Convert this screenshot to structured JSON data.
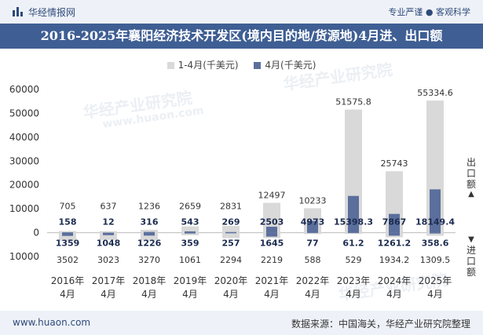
{
  "header": {
    "brand": "华经情报网",
    "slogan": "专业严谨 ● 客观科学"
  },
  "title": "2016-2025年襄阳经济技术开发区(境内目的地/货源地)4月进、出口额",
  "legend": [
    "1-4月(千美元)",
    "4月(千美元)"
  ],
  "side_labels": {
    "export": "出口额",
    "import": "进口额"
  },
  "watermarks": [
    "华经产业研究院",
    "www.huaon.com"
  ],
  "footer": {
    "url": "www.huaon.com",
    "source": "数据来源：中国海关，华经产业研究院整理"
  },
  "colors": {
    "cumulative": "#d9d9d9",
    "monthly": "#5b6f9d",
    "header_bg": "#3f5f94"
  },
  "chart_data": {
    "type": "bar",
    "categories": [
      "2016年\n4月",
      "2017年\n4月",
      "2018年\n4月",
      "2019年\n4月",
      "2020年\n4月",
      "2021年\n4月",
      "2022年\n4月",
      "2023年\n4月",
      "2024年\n4月",
      "2025年\n4月"
    ],
    "ylim": [
      -10000,
      60000
    ],
    "yticks": [
      -10000,
      0,
      10000,
      20000,
      30000,
      40000,
      50000,
      60000
    ],
    "ytick_labels": [
      "10000",
      "0",
      "10000",
      "20000",
      "30000",
      "40000",
      "50000",
      "60000"
    ],
    "series": [
      {
        "name": "1-4月(千美元)",
        "group": "export",
        "values": [
          705,
          637,
          1236,
          2659,
          2831,
          12497,
          10233,
          51575.8,
          25743,
          55334.6
        ]
      },
      {
        "name": "4月(千美元)",
        "group": "export",
        "values": [
          158,
          12,
          316,
          543,
          269,
          2503,
          4973,
          15398.3,
          7867,
          18149.4
        ]
      },
      {
        "name": "1-4月(千美元)",
        "group": "import",
        "values": [
          3502,
          3023,
          3270,
          1061,
          2294,
          2219,
          588,
          529,
          1934.2,
          1309.5
        ]
      },
      {
        "name": "4月(千美元)",
        "group": "import",
        "values": [
          1359,
          1048,
          1226,
          359,
          257,
          1645,
          77,
          61.2,
          1261.2,
          358.6
        ]
      }
    ],
    "export_total_labels": [
      "705",
      "637",
      "1236",
      "2659",
      "2831",
      "12497",
      "10233",
      "51575.8",
      "25743",
      "55334.6"
    ],
    "export_month_labels": [
      "158",
      "12",
      "316",
      "543",
      "269",
      "2503",
      "4973",
      "15398.3",
      "7867",
      "18149.4"
    ],
    "import_total_labels": [
      "3502",
      "3023",
      "3270",
      "1061",
      "2294",
      "2219",
      "588",
      "529",
      "1934.2",
      "1309.5"
    ],
    "import_month_labels": [
      "1359",
      "1048",
      "1226",
      "359",
      "257",
      "1645",
      "77",
      "61.2",
      "1261.2",
      "358.6"
    ]
  }
}
